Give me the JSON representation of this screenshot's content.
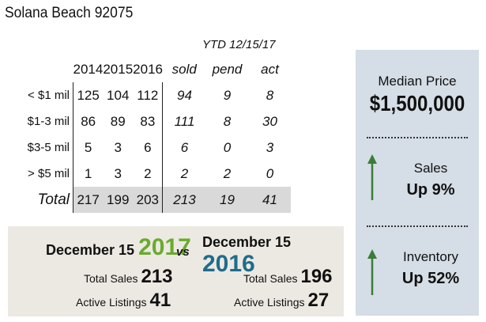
{
  "title": "Solana Beach 92075",
  "ytd_label": "YTD 12/15/17",
  "table": {
    "years": [
      "2014",
      "2015",
      "2016"
    ],
    "ytd_headers": [
      "sold",
      "pend",
      "act"
    ],
    "rows": [
      {
        "label": "< $1 mil",
        "vals": [
          "125",
          "104",
          "112"
        ],
        "ytd": [
          "94",
          "9",
          "8"
        ]
      },
      {
        "label": "$1-3 mil",
        "vals": [
          "86",
          "89",
          "83"
        ],
        "ytd": [
          "111",
          "8",
          "30"
        ]
      },
      {
        "label": "$3-5 mil",
        "vals": [
          "5",
          "3",
          "6"
        ],
        "ytd": [
          "6",
          "0",
          "3"
        ]
      },
      {
        "label": "> $5 mil",
        "vals": [
          "1",
          "3",
          "2"
        ],
        "ytd": [
          "2",
          "2",
          "0"
        ]
      }
    ],
    "total": {
      "label": "Total",
      "vals": [
        "217",
        "199",
        "203"
      ],
      "ytd": [
        "213",
        "19",
        "41"
      ]
    }
  },
  "median": {
    "label": "Median Price",
    "value": "$1,500,000"
  },
  "sales": {
    "label": "Sales",
    "change": "Up 9%"
  },
  "inventory": {
    "label": "Inventory",
    "change": "Up 52%"
  },
  "compare": {
    "left": {
      "prefix": "December 15",
      "year": "2017",
      "sales_label": "Total Sales",
      "sales": "213",
      "listings_label": "Active Listings",
      "listings": "41"
    },
    "vs": "vs",
    "right": {
      "prefix": "December 15",
      "year": "2016",
      "sales_label": "Total Sales",
      "sales": "196",
      "listings_label": "Active Listings",
      "listings": "27"
    }
  },
  "colors": {
    "green": "#6aab2e",
    "blue": "#1f6c8c",
    "arrow": "#3a7d3a",
    "panel": "#d5dde6"
  }
}
